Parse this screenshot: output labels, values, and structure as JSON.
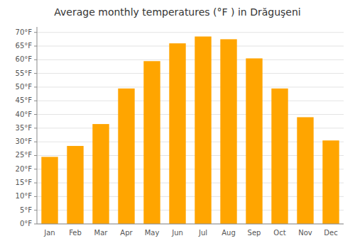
{
  "chart_data": {
    "type": "bar",
    "title": "Average monthly temperatures (°F ) in Drăguşeni",
    "categories": [
      "Jan",
      "Feb",
      "Mar",
      "Apr",
      "May",
      "Jun",
      "Jul",
      "Aug",
      "Sep",
      "Oct",
      "Nov",
      "Dec"
    ],
    "values": [
      24.5,
      28.5,
      36.5,
      49.5,
      59.5,
      66.0,
      68.5,
      67.5,
      60.5,
      49.5,
      39.0,
      30.5
    ],
    "color": "#FFA500",
    "ylim": [
      0,
      72
    ],
    "yticks": [
      {
        "value": 0,
        "label": "0°F"
      },
      {
        "value": 5,
        "label": "5°F"
      },
      {
        "value": 10,
        "label": "10°F"
      },
      {
        "value": 15,
        "label": "15°F"
      },
      {
        "value": 20,
        "label": "20°F"
      },
      {
        "value": 25,
        "label": "25°F"
      },
      {
        "value": 30,
        "label": "30°F"
      },
      {
        "value": 35,
        "label": "35°F"
      },
      {
        "value": 40,
        "label": "40°F"
      },
      {
        "value": 45,
        "label": "45°F"
      },
      {
        "value": 50,
        "label": "50°F"
      },
      {
        "value": 55,
        "label": "55°F"
      },
      {
        "value": 60,
        "label": "60°F"
      },
      {
        "value": 65,
        "label": "65°F"
      },
      {
        "value": 70,
        "label": "70°F"
      }
    ],
    "grid": true
  }
}
